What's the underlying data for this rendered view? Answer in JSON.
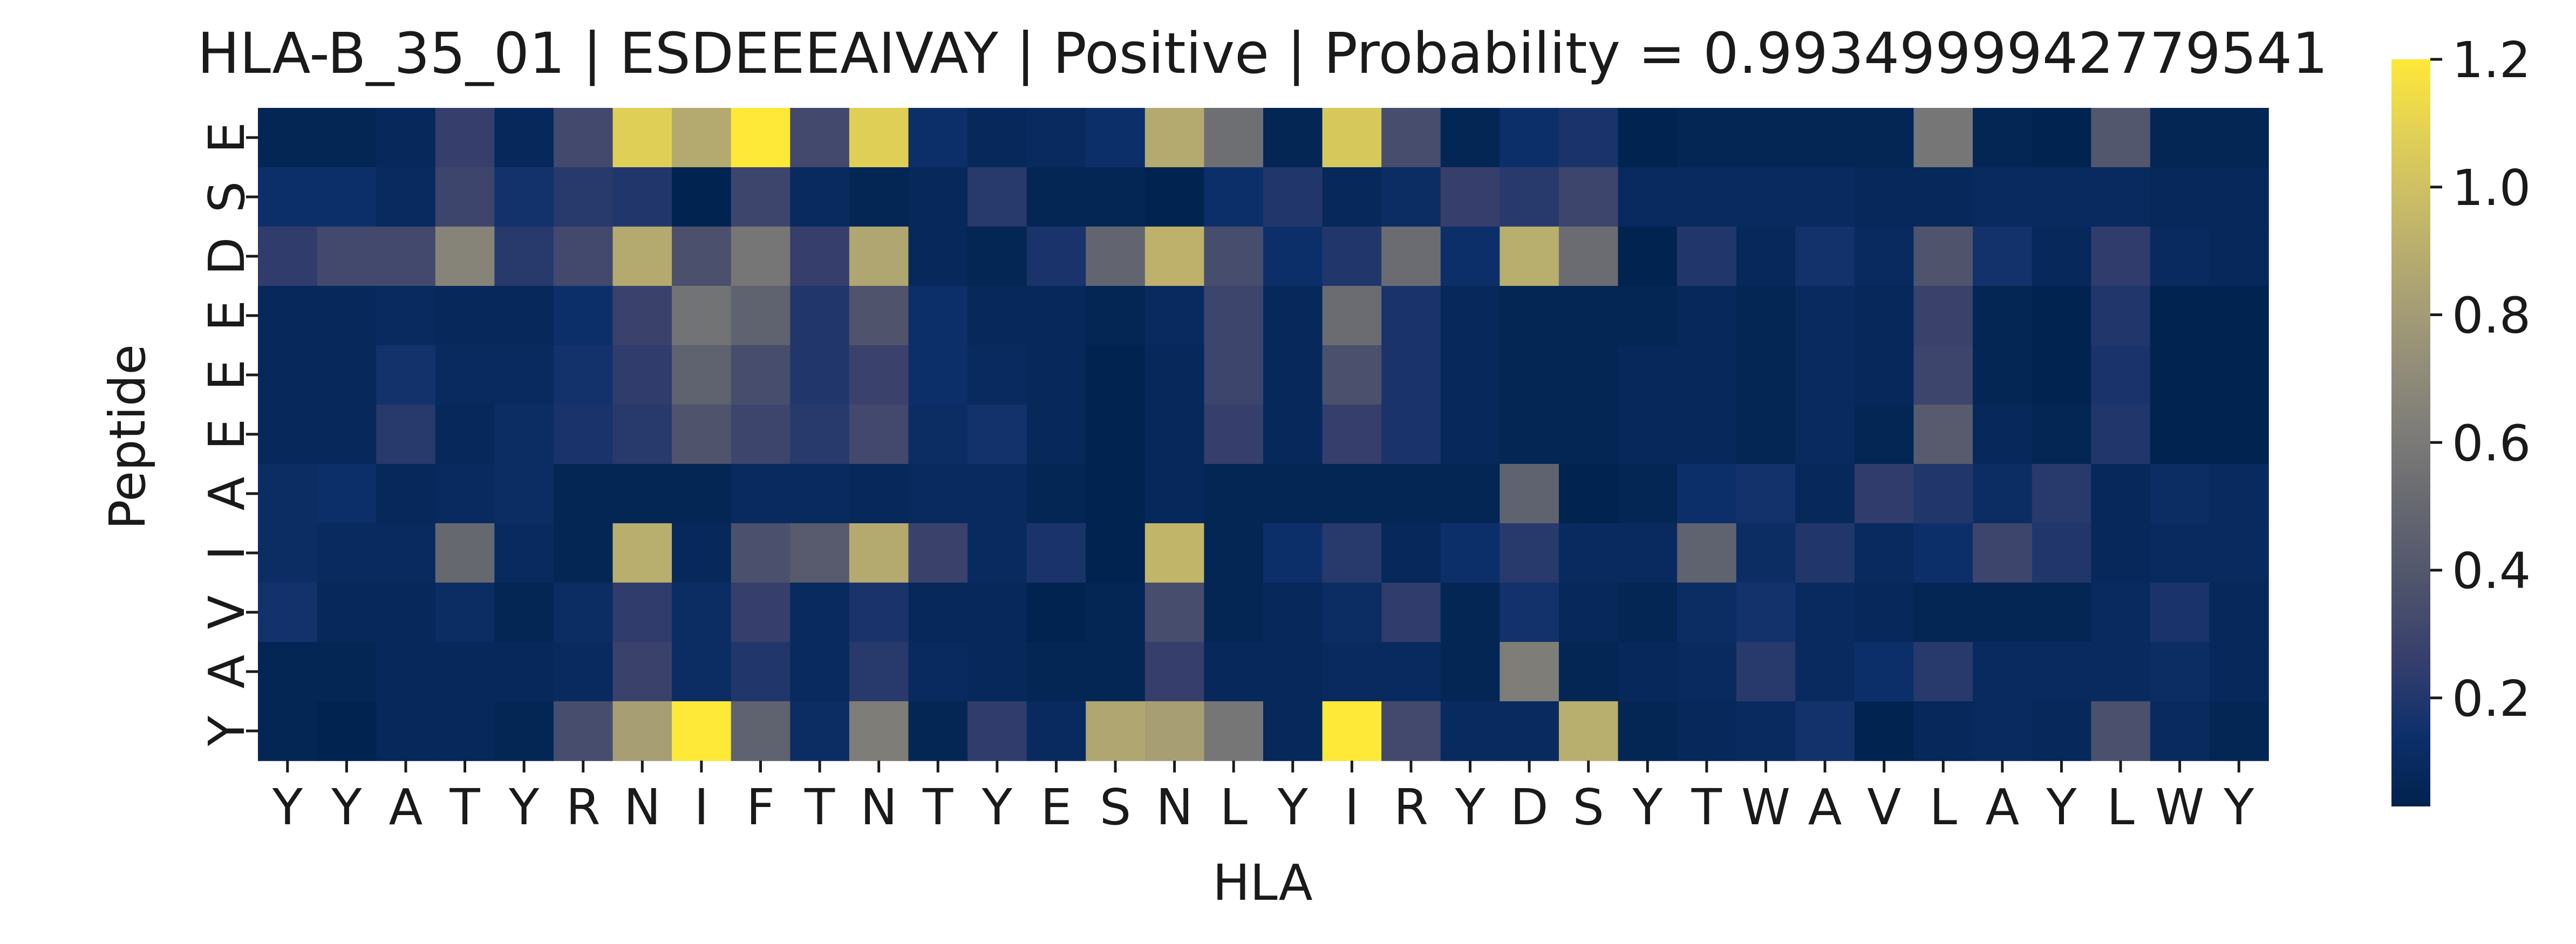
{
  "chart_data": {
    "type": "heatmap",
    "title": "HLA-B_35_01 | ESDEEEAIVAY | Positive | Probability = 0.9934999942779541",
    "xlabel": "HLA",
    "ylabel": "Peptide",
    "x_categories": [
      "Y",
      "Y",
      "A",
      "T",
      "Y",
      "R",
      "N",
      "I",
      "F",
      "T",
      "N",
      "T",
      "Y",
      "E",
      "S",
      "N",
      "L",
      "Y",
      "I",
      "R",
      "Y",
      "D",
      "S",
      "Y",
      "T",
      "W",
      "A",
      "V",
      "L",
      "A",
      "Y",
      "L",
      "W",
      "Y"
    ],
    "y_categories": [
      "E",
      "S",
      "D",
      "E",
      "E",
      "E",
      "A",
      "I",
      "V",
      "A",
      "Y"
    ],
    "values": [
      [
        0.06,
        0.06,
        0.08,
        0.26,
        0.08,
        0.32,
        1.08,
        0.88,
        1.2,
        0.32,
        1.08,
        0.14,
        0.08,
        0.1,
        0.14,
        0.88,
        0.54,
        0.06,
        1.04,
        0.34,
        0.06,
        0.14,
        0.18,
        0.04,
        0.06,
        0.06,
        0.06,
        0.06,
        0.58,
        0.06,
        0.04,
        0.4,
        0.06,
        0.06
      ],
      [
        0.14,
        0.14,
        0.1,
        0.3,
        0.16,
        0.22,
        0.2,
        0.04,
        0.3,
        0.1,
        0.06,
        0.08,
        0.22,
        0.06,
        0.06,
        0.04,
        0.14,
        0.2,
        0.08,
        0.12,
        0.26,
        0.22,
        0.3,
        0.1,
        0.1,
        0.1,
        0.1,
        0.08,
        0.08,
        0.1,
        0.1,
        0.1,
        0.08,
        0.08
      ],
      [
        0.24,
        0.32,
        0.32,
        0.66,
        0.22,
        0.32,
        0.88,
        0.36,
        0.58,
        0.26,
        0.86,
        0.08,
        0.06,
        0.18,
        0.48,
        0.92,
        0.34,
        0.14,
        0.2,
        0.52,
        0.14,
        0.9,
        0.52,
        0.04,
        0.2,
        0.08,
        0.16,
        0.1,
        0.38,
        0.16,
        0.08,
        0.24,
        0.1,
        0.08
      ],
      [
        0.08,
        0.08,
        0.1,
        0.08,
        0.08,
        0.14,
        0.28,
        0.56,
        0.46,
        0.2,
        0.38,
        0.14,
        0.08,
        0.08,
        0.06,
        0.1,
        0.3,
        0.08,
        0.52,
        0.18,
        0.08,
        0.06,
        0.06,
        0.06,
        0.08,
        0.06,
        0.1,
        0.08,
        0.28,
        0.06,
        0.04,
        0.2,
        0.04,
        0.04
      ],
      [
        0.08,
        0.08,
        0.16,
        0.1,
        0.1,
        0.16,
        0.24,
        0.46,
        0.34,
        0.2,
        0.28,
        0.14,
        0.1,
        0.08,
        0.04,
        0.08,
        0.3,
        0.08,
        0.36,
        0.18,
        0.08,
        0.06,
        0.06,
        0.08,
        0.08,
        0.06,
        0.1,
        0.08,
        0.3,
        0.06,
        0.04,
        0.18,
        0.04,
        0.04
      ],
      [
        0.08,
        0.08,
        0.22,
        0.08,
        0.12,
        0.18,
        0.22,
        0.38,
        0.3,
        0.22,
        0.32,
        0.12,
        0.16,
        0.08,
        0.04,
        0.08,
        0.26,
        0.08,
        0.26,
        0.18,
        0.08,
        0.06,
        0.06,
        0.08,
        0.08,
        0.06,
        0.1,
        0.06,
        0.42,
        0.08,
        0.06,
        0.2,
        0.04,
        0.04
      ],
      [
        0.12,
        0.14,
        0.08,
        0.1,
        0.12,
        0.06,
        0.06,
        0.06,
        0.1,
        0.1,
        0.08,
        0.1,
        0.1,
        0.06,
        0.04,
        0.08,
        0.06,
        0.06,
        0.06,
        0.06,
        0.06,
        0.46,
        0.04,
        0.06,
        0.14,
        0.16,
        0.08,
        0.24,
        0.2,
        0.12,
        0.22,
        0.08,
        0.12,
        0.1
      ],
      [
        0.12,
        0.1,
        0.1,
        0.5,
        0.1,
        0.06,
        0.9,
        0.08,
        0.36,
        0.42,
        0.88,
        0.28,
        0.1,
        0.18,
        0.04,
        0.94,
        0.06,
        0.14,
        0.22,
        0.08,
        0.14,
        0.22,
        0.1,
        0.1,
        0.46,
        0.12,
        0.2,
        0.1,
        0.14,
        0.3,
        0.2,
        0.08,
        0.1,
        0.1
      ],
      [
        0.16,
        0.08,
        0.08,
        0.12,
        0.06,
        0.12,
        0.24,
        0.12,
        0.26,
        0.1,
        0.18,
        0.08,
        0.08,
        0.04,
        0.06,
        0.34,
        0.06,
        0.08,
        0.12,
        0.24,
        0.06,
        0.16,
        0.08,
        0.06,
        0.12,
        0.16,
        0.1,
        0.08,
        0.06,
        0.06,
        0.06,
        0.1,
        0.18,
        0.08
      ],
      [
        0.06,
        0.06,
        0.08,
        0.08,
        0.08,
        0.1,
        0.28,
        0.12,
        0.2,
        0.1,
        0.22,
        0.1,
        0.08,
        0.06,
        0.06,
        0.26,
        0.08,
        0.08,
        0.1,
        0.1,
        0.06,
        0.62,
        0.06,
        0.08,
        0.1,
        0.22,
        0.1,
        0.14,
        0.22,
        0.1,
        0.1,
        0.1,
        0.12,
        0.08
      ],
      [
        0.06,
        0.04,
        0.08,
        0.08,
        0.06,
        0.34,
        0.82,
        1.2,
        0.46,
        0.12,
        0.62,
        0.06,
        0.24,
        0.1,
        0.86,
        0.82,
        0.58,
        0.08,
        1.2,
        0.32,
        0.1,
        0.1,
        0.9,
        0.06,
        0.08,
        0.1,
        0.16,
        0.04,
        0.08,
        0.1,
        0.08,
        0.36,
        0.1,
        0.06
      ]
    ],
    "colorbar": {
      "colormap": "cividis",
      "vmin": 0.03,
      "vmax": 1.2,
      "ticks": [
        0.2,
        0.4,
        0.6,
        0.8,
        1.0,
        1.2
      ],
      "tick_labels": [
        "0.2",
        "0.4",
        "0.6",
        "0.8",
        "1.0",
        "1.2"
      ]
    }
  }
}
